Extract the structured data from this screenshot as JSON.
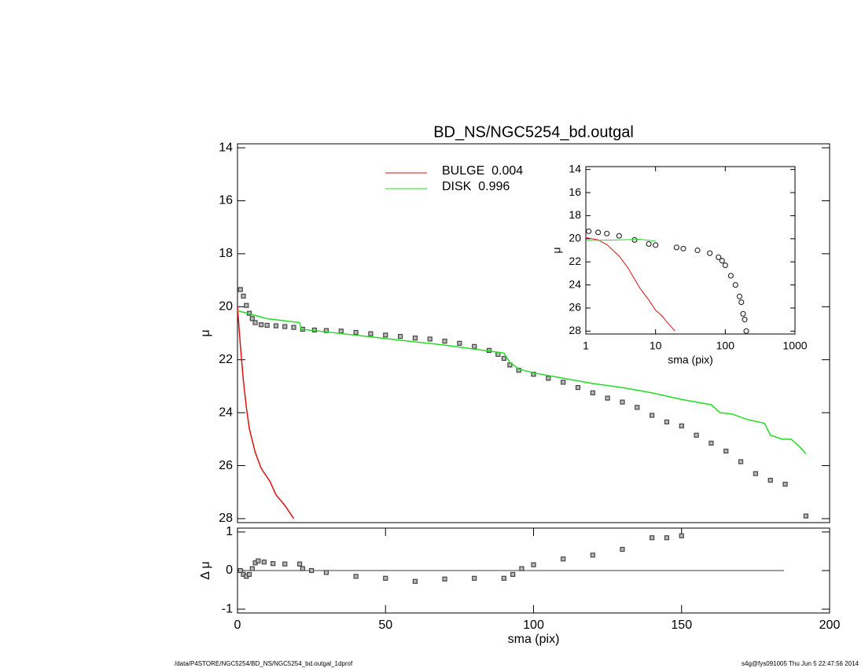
{
  "chart_data": [
    {
      "type": "line",
      "title": "BD_NS/NGC5254_bd.outgal",
      "y_label": "μ",
      "xlim": [
        0,
        200
      ],
      "ylim": [
        13.85,
        28.15
      ],
      "y_reversed": true,
      "yticks": [
        14,
        16,
        18,
        20,
        22,
        24,
        26,
        28
      ],
      "legend": "upper center",
      "series": [
        {
          "style": "markers",
          "marker": "square",
          "color": "#444444",
          "x": [
            1,
            2,
            3,
            4,
            5,
            6,
            8,
            10,
            13,
            16,
            19,
            22,
            26,
            30,
            35,
            40,
            45,
            50,
            55,
            60,
            65,
            70,
            75,
            80,
            85,
            88,
            90,
            92,
            95,
            100,
            105,
            110,
            115,
            120,
            125,
            130,
            135,
            140,
            145,
            150,
            155,
            160,
            165,
            170,
            175,
            180,
            185,
            192
          ],
          "values": [
            19.35,
            19.6,
            19.95,
            20.25,
            20.45,
            20.6,
            20.68,
            20.7,
            20.72,
            20.75,
            20.78,
            20.85,
            20.88,
            20.9,
            20.92,
            20.97,
            21.02,
            21.07,
            21.12,
            21.18,
            21.22,
            21.3,
            21.38,
            21.5,
            21.65,
            21.8,
            21.95,
            22.2,
            22.4,
            22.55,
            22.7,
            22.85,
            23.05,
            23.25,
            23.45,
            23.6,
            23.8,
            24.1,
            24.35,
            24.5,
            24.85,
            25.15,
            25.45,
            25.85,
            26.3,
            26.55,
            26.7,
            27.9
          ]
        },
        {
          "name": "BULGE  0.004",
          "style": "line",
          "color": "#e01010",
          "x": [
            0,
            1,
            2,
            3,
            4,
            6,
            8,
            11,
            13,
            16,
            19
          ],
          "values": [
            20.0,
            21.5,
            22.8,
            23.8,
            24.6,
            25.5,
            26.1,
            26.6,
            27.1,
            27.5,
            28.0
          ]
        },
        {
          "name": "DISK  0.996",
          "style": "line",
          "color": "#22dd22",
          "x": [
            0,
            5,
            10,
            21,
            21.5,
            30,
            50,
            70,
            90,
            92,
            95,
            100,
            110,
            120,
            130,
            140,
            150,
            160,
            163,
            167,
            172,
            178,
            180,
            184,
            187,
            190,
            192
          ],
          "values": [
            20.15,
            20.3,
            20.45,
            20.6,
            20.85,
            20.95,
            21.2,
            21.45,
            21.75,
            22.1,
            22.35,
            22.5,
            22.7,
            22.9,
            23.05,
            23.25,
            23.5,
            23.7,
            24.0,
            24.05,
            24.25,
            24.4,
            24.85,
            25.0,
            25.0,
            25.3,
            25.55
          ]
        }
      ]
    },
    {
      "type": "line",
      "x_label": "sma (pix)",
      "y_label": "Δ μ",
      "xlim": [
        0,
        200
      ],
      "xticks": [
        0,
        50,
        100,
        150,
        200
      ],
      "ylim": [
        -1.1,
        1.1
      ],
      "yticks": [
        -1,
        0,
        1
      ],
      "zero_line": true,
      "series": [
        {
          "style": "markers",
          "marker": "square",
          "color": "#444444",
          "x": [
            1,
            2,
            3,
            4,
            5,
            6,
            7,
            9,
            12,
            16,
            21,
            22,
            25,
            30,
            40,
            50,
            60,
            70,
            80,
            90,
            93,
            96,
            100,
            110,
            120,
            130,
            140,
            145,
            150
          ],
          "values": [
            0.0,
            -0.1,
            -0.15,
            -0.1,
            0.05,
            0.2,
            0.25,
            0.22,
            0.18,
            0.17,
            0.17,
            0.05,
            0.0,
            -0.05,
            -0.15,
            -0.2,
            -0.28,
            -0.22,
            -0.2,
            -0.2,
            -0.1,
            0.05,
            0.15,
            0.3,
            0.4,
            0.55,
            0.85,
            0.85,
            0.9
          ]
        }
      ]
    },
    {
      "type": "line",
      "x_label": "sma (pix)",
      "y_label": "μ",
      "x_log": true,
      "xlim": [
        1,
        1000
      ],
      "xticks": [
        1,
        10,
        100,
        1000
      ],
      "ylim": [
        13.75,
        28.25
      ],
      "y_reversed": true,
      "yticks": [
        14,
        16,
        18,
        20,
        22,
        24,
        26,
        28
      ],
      "series": [
        {
          "style": "markers",
          "marker": "circle",
          "color": "#333333",
          "x": [
            1.1,
            1.5,
            2,
            3,
            5,
            8,
            10,
            20,
            25,
            40,
            60,
            80,
            90,
            100,
            120,
            140,
            160,
            170,
            180,
            190,
            200
          ],
          "values": [
            19.35,
            19.45,
            19.55,
            19.75,
            20.1,
            20.45,
            20.55,
            20.75,
            20.85,
            21.0,
            21.25,
            21.6,
            21.9,
            22.3,
            23.2,
            24.0,
            25.0,
            25.5,
            26.5,
            27.0,
            28.0
          ]
        },
        {
          "style": "line",
          "color": "#e01010",
          "x": [
            1,
            1.5,
            2,
            3,
            4,
            5,
            6,
            8,
            10,
            12,
            15,
            19
          ],
          "values": [
            19.9,
            20.1,
            20.5,
            21.5,
            22.5,
            23.5,
            24.3,
            25.3,
            26.2,
            26.6,
            27.3,
            28.0
          ]
        },
        {
          "style": "line",
          "color": "#22dd22",
          "x": [
            1,
            3,
            6,
            10
          ],
          "values": [
            20.15,
            20.1,
            20.05,
            20.2
          ]
        }
      ]
    }
  ],
  "footer": {
    "left": "/data/P4STORE/NGC5254/BD_NS/NGC5254_bd.outgal_1dprof",
    "right": "s4g@fys091005  Thu Jun  5 22:47:56 2014"
  }
}
